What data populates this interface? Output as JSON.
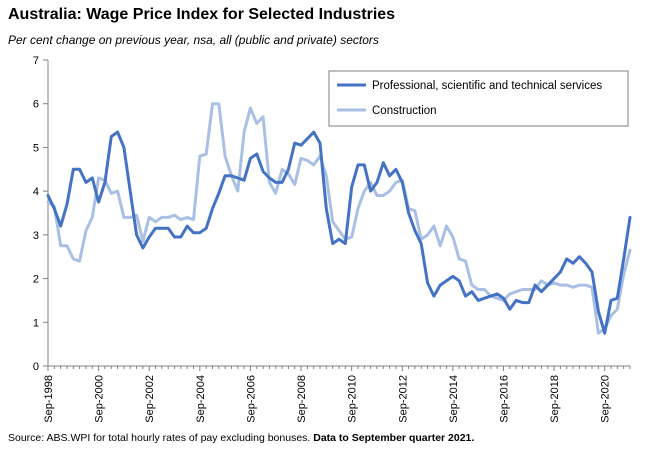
{
  "header": {
    "title": "Australia: Wage Price Index for Selected Industries",
    "subtitle": "Per cent change on previous year, nsa, all (public and private) sectors"
  },
  "footer": {
    "source_text": "Source: ABS.WPI for total hourly rates of pay excluding bonuses.",
    "data_note": "Data to September quarter 2021."
  },
  "colors": {
    "professional": "#4472C4",
    "construction": "#A9C0E4",
    "axis": "#808080",
    "legend_border": "#808080"
  },
  "chart_data": {
    "type": "line",
    "title": "Australia: Wage Price Index for Selected Industries",
    "subtitle": "Per cent change on previous year, nsa, all (public and private) sectors",
    "xlabel": "",
    "ylabel": "",
    "ylim": [
      0,
      7
    ],
    "yticks": [
      "0",
      "1",
      "2",
      "3",
      "4",
      "5",
      "6",
      "7"
    ],
    "xticks": [
      "Sep-1998",
      "Sep-2000",
      "Sep-2002",
      "Sep-2004",
      "Sep-2006",
      "Sep-2008",
      "Sep-2010",
      "Sep-2012",
      "Sep-2014",
      "Sep-2016",
      "Sep-2018",
      "Sep-2020"
    ],
    "x_range": [
      "Sep-1998",
      "Sep-2021"
    ],
    "grid": false,
    "legend_position": "top-right",
    "series": [
      {
        "name": "Professional, scientific and technical services",
        "color": "#4472C4",
        "values": [
          3.9,
          3.6,
          3.2,
          3.7,
          4.5,
          4.5,
          4.2,
          4.3,
          3.75,
          4.2,
          5.25,
          5.35,
          5.0,
          4.0,
          3.0,
          2.7,
          2.95,
          3.15,
          3.15,
          3.15,
          2.95,
          2.95,
          3.2,
          3.05,
          3.05,
          3.15,
          3.6,
          3.95,
          4.35,
          4.35,
          4.3,
          4.25,
          4.75,
          4.85,
          4.45,
          4.3,
          4.2,
          4.2,
          4.5,
          5.1,
          5.05,
          5.2,
          5.35,
          5.1,
          3.6,
          2.8,
          2.9,
          2.8,
          4.1,
          4.6,
          4.6,
          4.0,
          4.2,
          4.65,
          4.35,
          4.5,
          4.2,
          3.5,
          3.1,
          2.8,
          1.9,
          1.6,
          1.85,
          1.95,
          2.05,
          1.95,
          1.6,
          1.7,
          1.5,
          1.55,
          1.6,
          1.65,
          1.55,
          1.3,
          1.5,
          1.45,
          1.45,
          1.85,
          1.7,
          1.85,
          2.0,
          2.15,
          2.45,
          2.35,
          2.5,
          2.35,
          2.15,
          1.25,
          0.75,
          1.5,
          1.55,
          2.45,
          3.4
        ]
      },
      {
        "name": "Construction",
        "color": "#A9C0E4",
        "values": [
          3.75,
          3.65,
          2.75,
          2.75,
          2.45,
          2.4,
          3.1,
          3.4,
          4.3,
          4.25,
          3.95,
          4.0,
          3.4,
          3.4,
          3.45,
          2.85,
          3.4,
          3.3,
          3.4,
          3.4,
          3.45,
          3.35,
          3.4,
          3.35,
          4.8,
          4.85,
          6.0,
          6.0,
          4.8,
          4.35,
          4.0,
          5.35,
          5.9,
          5.55,
          5.7,
          4.2,
          3.95,
          4.5,
          4.4,
          4.15,
          4.75,
          4.7,
          4.6,
          4.8,
          4.35,
          3.3,
          3.1,
          2.9,
          2.95,
          3.6,
          4.0,
          4.2,
          3.9,
          3.9,
          4.0,
          4.2,
          4.25,
          3.6,
          3.55,
          2.9,
          3.0,
          3.2,
          2.75,
          3.2,
          2.95,
          2.45,
          2.4,
          1.85,
          1.75,
          1.75,
          1.6,
          1.55,
          1.5,
          1.65,
          1.7,
          1.75,
          1.75,
          1.75,
          1.95,
          1.85,
          1.9,
          1.85,
          1.85,
          1.8,
          1.85,
          1.85,
          1.8,
          0.75,
          0.85,
          1.15,
          1.3,
          2.1,
          2.65
        ]
      }
    ]
  }
}
